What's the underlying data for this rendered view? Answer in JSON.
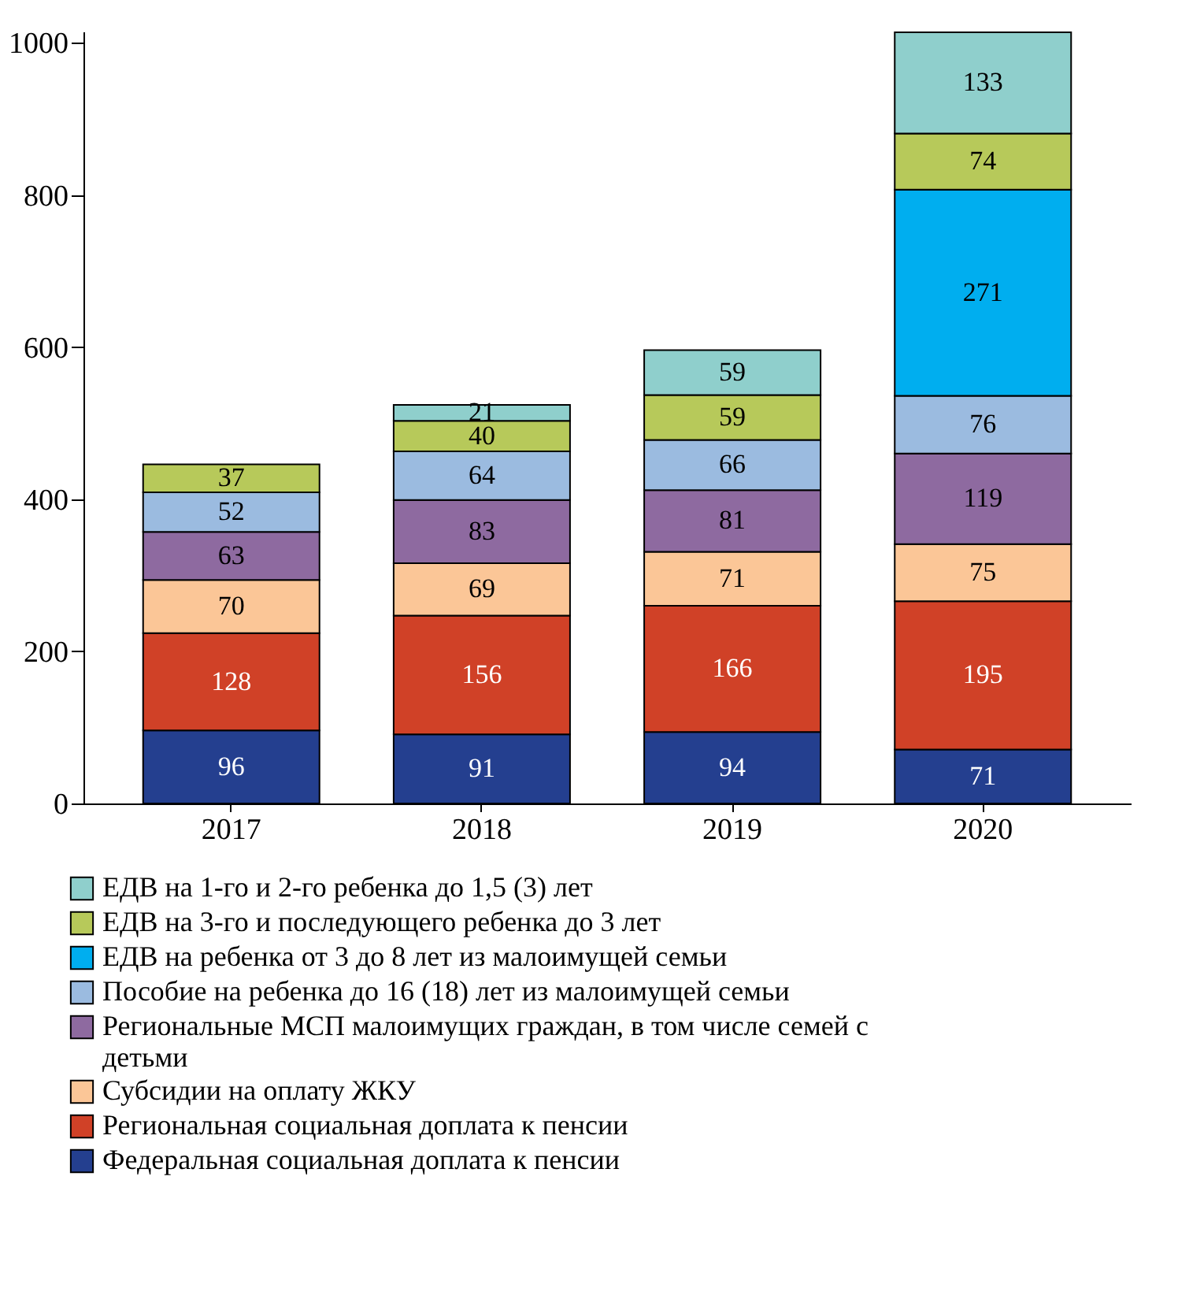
{
  "chart_data": {
    "type": "bar",
    "stacked": true,
    "data_labels": true,
    "legend": "bottom",
    "grid": false,
    "categories": [
      "2017",
      "2018",
      "2019",
      "2020"
    ],
    "ylim": [
      0,
      1015
    ],
    "yticks": [
      0,
      200,
      400,
      600,
      800,
      1000
    ],
    "series": [
      {
        "name": "Федеральная социальная доплата к пенсии",
        "color": "#243f8f",
        "values": [
          96,
          91,
          94,
          71
        ]
      },
      {
        "name": "Региональная социальная доплата к пенсии",
        "color": "#d04127",
        "values": [
          128,
          156,
          166,
          195
        ]
      },
      {
        "name": "Субсидии на оплату ЖКУ",
        "color": "#fbc697",
        "values": [
          70,
          69,
          71,
          75
        ]
      },
      {
        "name": "Региональные МСП малоимущих граждан, в том числе семей с детьми",
        "color": "#8e6aa0",
        "values": [
          63,
          83,
          81,
          119
        ]
      },
      {
        "name": "Пособие на ребенка до 16 (18) лет из малоимущей семьи",
        "color": "#9bbbe0",
        "values": [
          52,
          64,
          66,
          76
        ]
      },
      {
        "name": "ЕДВ на ребенка от 3 до 8 лет из малоимущей семьи",
        "color": "#00aeef",
        "values": [
          null,
          null,
          null,
          271
        ]
      },
      {
        "name": "ЕДВ на 3-го и последующего ребенка до 3 лет",
        "color": "#b7c95a",
        "values": [
          37,
          40,
          59,
          74
        ]
      },
      {
        "name": "ЕДВ на 1-го и 2-го ребенка до 1,5 (3) лет",
        "color": "#8fcfcc",
        "values": [
          null,
          21,
          59,
          133
        ]
      }
    ]
  }
}
